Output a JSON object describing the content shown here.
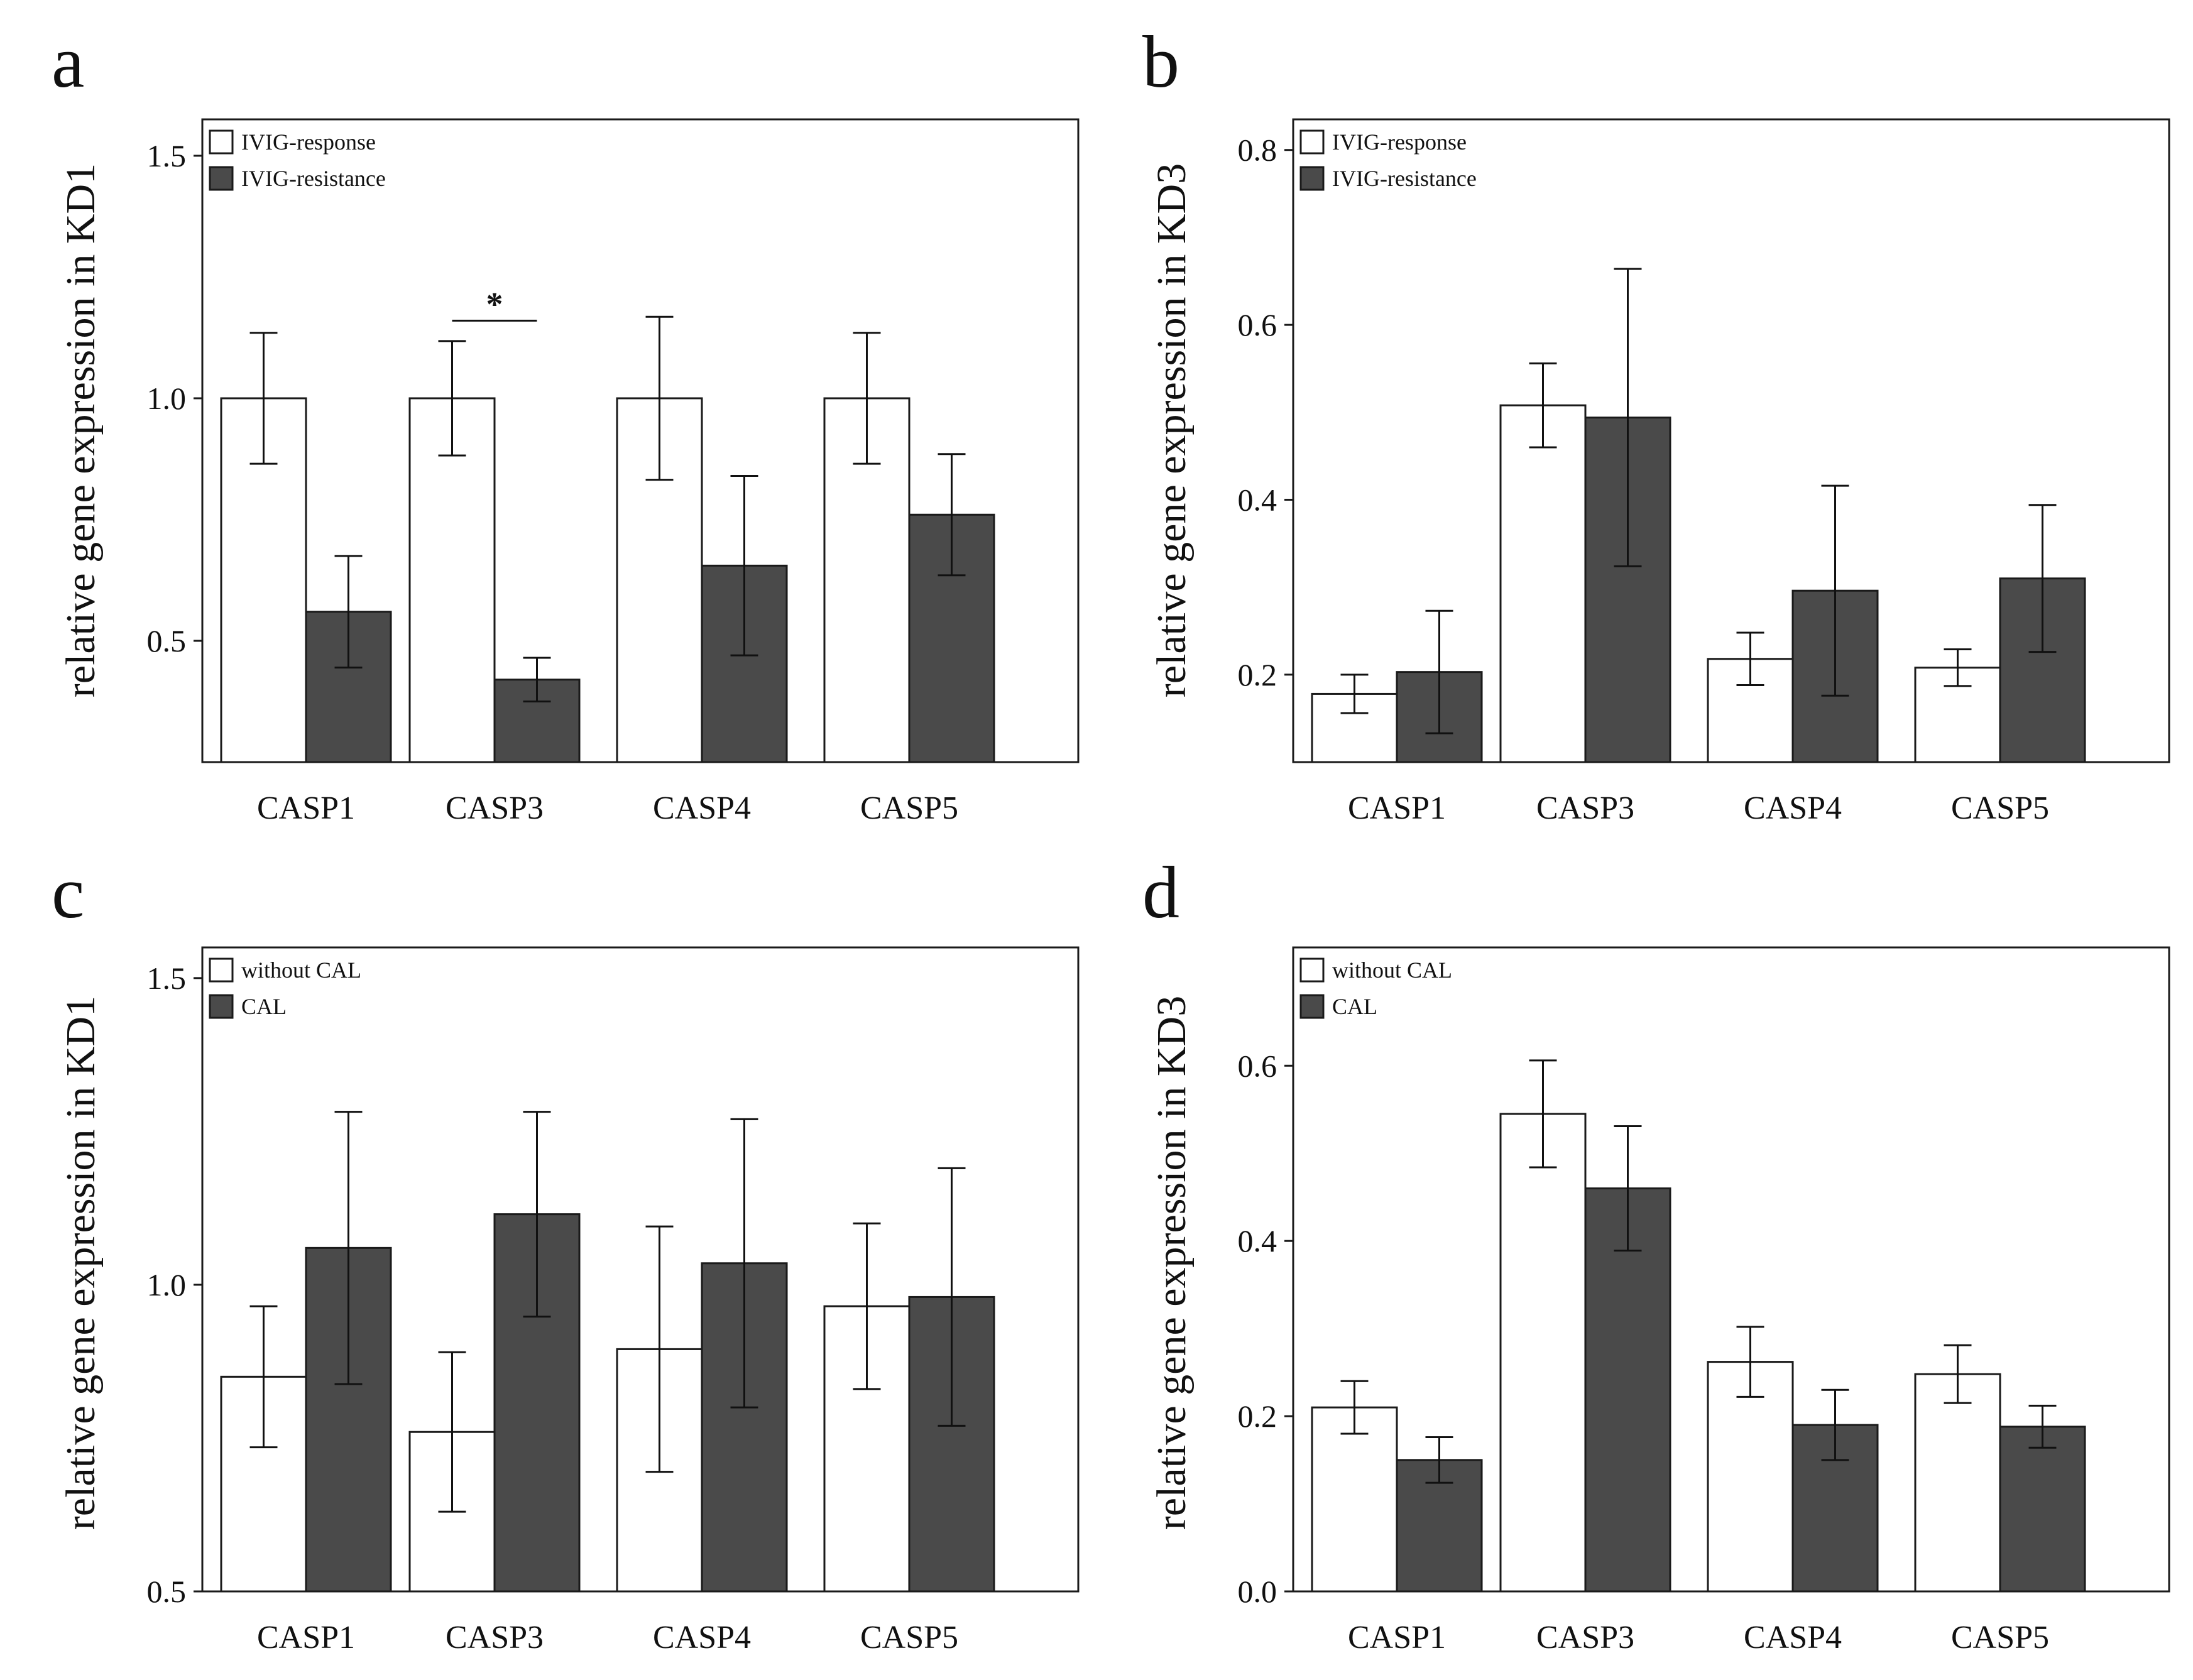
{
  "figure": {
    "background": "#ffffff",
    "bar_colors": {
      "white": "#ffffff",
      "dark": "#4a4a4a",
      "edge": "#1a1a1a"
    }
  },
  "chart_data": [
    {
      "panel": "a",
      "type": "bar",
      "categories": [
        "CASP1",
        "CASP3",
        "CASP4",
        "CASP5"
      ],
      "ylabel": "relative gene expression in KD1",
      "xlabel": "",
      "ylim": [
        0.25,
        1.575
      ],
      "yticks": [
        0.5,
        1.0,
        1.5
      ],
      "ytick_labels": [
        "0.5",
        "1.0",
        "1.5"
      ],
      "legend": "top-left",
      "series": [
        {
          "name": "IVIG-response",
          "color": "#ffffff",
          "values": [
            1.0,
            1.0,
            1.0,
            1.0
          ],
          "errors": [
            0.135,
            0.118,
            0.168,
            0.135
          ]
        },
        {
          "name": "IVIG-resistance",
          "color": "#4a4a4a",
          "values": [
            0.56,
            0.42,
            0.655,
            0.76
          ],
          "errors": [
            0.115,
            0.045,
            0.185,
            0.125
          ]
        }
      ],
      "annotations": [
        {
          "text": "*",
          "category": "CASP3",
          "y": 1.16
        }
      ]
    },
    {
      "panel": "b",
      "type": "bar",
      "categories": [
        "CASP1",
        "CASP3",
        "CASP4",
        "CASP5"
      ],
      "ylabel": "relative gene expression in KD3",
      "xlabel": "",
      "ylim": [
        0.1,
        0.835
      ],
      "yticks": [
        0.2,
        0.4,
        0.6,
        0.8
      ],
      "ytick_labels": [
        "0.2",
        "0.4",
        "0.6",
        "0.8"
      ],
      "legend": "top-left",
      "series": [
        {
          "name": "IVIG-response",
          "color": "#ffffff",
          "values": [
            0.178,
            0.508,
            0.218,
            0.208
          ],
          "errors": [
            0.022,
            0.048,
            0.03,
            0.021
          ]
        },
        {
          "name": "IVIG-resistance",
          "color": "#4a4a4a",
          "values": [
            0.203,
            0.494,
            0.296,
            0.31
          ],
          "errors": [
            0.07,
            0.17,
            0.12,
            0.084
          ]
        }
      ],
      "annotations": []
    },
    {
      "panel": "c",
      "type": "bar",
      "categories": [
        "CASP1",
        "CASP3",
        "CASP4",
        "CASP5"
      ],
      "ylabel": "relative gene expression in KD1",
      "xlabel": "",
      "ylim": [
        0.5,
        1.55
      ],
      "yticks": [
        0.5,
        1.0,
        1.5
      ],
      "ytick_labels": [
        "0.5",
        "1.0",
        "1.5"
      ],
      "legend": "top-left",
      "series": [
        {
          "name": "without CAL",
          "color": "#ffffff",
          "values": [
            0.85,
            0.76,
            0.895,
            0.965
          ],
          "errors": [
            0.115,
            0.13,
            0.2,
            0.135
          ]
        },
        {
          "name": "CAL",
          "color": "#4a4a4a",
          "values": [
            1.06,
            1.115,
            1.035,
            0.98
          ],
          "errors": [
            0.222,
            0.167,
            0.235,
            0.21
          ]
        }
      ],
      "annotations": []
    },
    {
      "panel": "d",
      "type": "bar",
      "categories": [
        "CASP1",
        "CASP3",
        "CASP4",
        "CASP5"
      ],
      "ylabel": "relative gene expression in KD3",
      "xlabel": "",
      "ylim": [
        0.0,
        0.735
      ],
      "yticks": [
        0.0,
        0.2,
        0.4,
        0.6
      ],
      "ytick_labels": [
        "0.0",
        "0.2",
        "0.4",
        "0.6"
      ],
      "legend": "top-left",
      "series": [
        {
          "name": "without CAL",
          "color": "#ffffff",
          "values": [
            0.21,
            0.545,
            0.262,
            0.248
          ],
          "errors": [
            0.03,
            0.061,
            0.04,
            0.033
          ]
        },
        {
          "name": "CAL",
          "color": "#4a4a4a",
          "values": [
            0.15,
            0.46,
            0.19,
            0.188
          ],
          "errors": [
            0.026,
            0.071,
            0.04,
            0.024
          ]
        }
      ],
      "annotations": []
    }
  ]
}
